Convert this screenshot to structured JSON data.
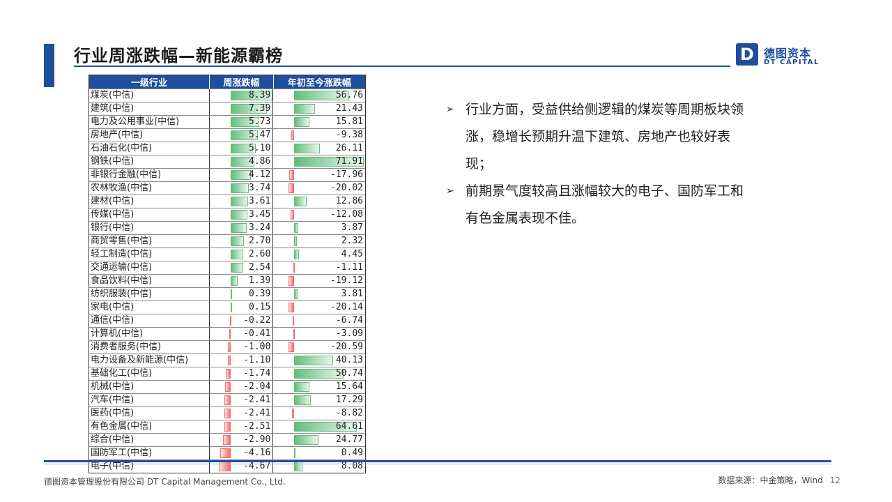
{
  "slide": {
    "title": "行业周涨跌幅—新能源霸榜",
    "logo": {
      "mark": "D",
      "cn": "德图资本",
      "en": "DT CAPITAL"
    }
  },
  "table": {
    "headers": [
      "一级行业",
      "周涨跌幅",
      "年初至今涨跌幅"
    ],
    "rows": [
      {
        "name": "煤炭(中信)",
        "week": "8.39",
        "ytd": "56.76"
      },
      {
        "name": "建筑(中信)",
        "week": "7.39",
        "ytd": "21.43"
      },
      {
        "name": "电力及公用事业(中信)",
        "week": "5.73",
        "ytd": "15.81"
      },
      {
        "name": "房地产(中信)",
        "week": "5.47",
        "ytd": "-9.38"
      },
      {
        "name": "石油石化(中信)",
        "week": "5.10",
        "ytd": "26.11"
      },
      {
        "name": "钢铁(中信)",
        "week": "4.86",
        "ytd": "71.91"
      },
      {
        "name": "非银行金融(中信)",
        "week": "4.12",
        "ytd": "-17.96"
      },
      {
        "name": "农林牧渔(中信)",
        "week": "3.74",
        "ytd": "-20.02"
      },
      {
        "name": "建材(中信)",
        "week": "3.61",
        "ytd": "12.86"
      },
      {
        "name": "传媒(中信)",
        "week": "3.45",
        "ytd": "-12.08"
      },
      {
        "name": "银行(中信)",
        "week": "3.24",
        "ytd": "3.87"
      },
      {
        "name": "商贸零售(中信)",
        "week": "2.70",
        "ytd": "2.32"
      },
      {
        "name": "轻工制造(中信)",
        "week": "2.60",
        "ytd": "4.45"
      },
      {
        "name": "交通运输(中信)",
        "week": "2.54",
        "ytd": "-1.11"
      },
      {
        "name": "食品饮料(中信)",
        "week": "1.39",
        "ytd": "-19.12"
      },
      {
        "name": "纺织服装(中信)",
        "week": "0.39",
        "ytd": "3.81"
      },
      {
        "name": "家电(中信)",
        "week": "0.15",
        "ytd": "-20.14"
      },
      {
        "name": "通信(中信)",
        "week": "-0.22",
        "ytd": "-6.74"
      },
      {
        "name": "计算机(中信)",
        "week": "-0.41",
        "ytd": "-3.09"
      },
      {
        "name": "消费者服务(中信)",
        "week": "-1.00",
        "ytd": "-20.59"
      },
      {
        "name": "电力设备及新能源(中信)",
        "week": "-1.10",
        "ytd": "40.13"
      },
      {
        "name": "基础化工(中信)",
        "week": "-1.74",
        "ytd": "50.74"
      },
      {
        "name": "机械(中信)",
        "week": "-2.04",
        "ytd": "15.64"
      },
      {
        "name": "汽车(中信)",
        "week": "-2.41",
        "ytd": "17.29"
      },
      {
        "name": "医药(中信)",
        "week": "-2.41",
        "ytd": "-8.82"
      },
      {
        "name": "有色金属(中信)",
        "week": "-2.51",
        "ytd": "64.61"
      },
      {
        "name": "综合(中信)",
        "week": "-2.90",
        "ytd": "24.77"
      },
      {
        "name": "国防军工(中信)",
        "week": "-4.16",
        "ytd": "0.49"
      },
      {
        "name": "电子(中信)",
        "week": "-4.67",
        "ytd": "8.08"
      }
    ]
  },
  "bullets": [
    "行业方面，受益供给侧逻辑的煤炭等周期板块领涨，稳增长预期升温下建筑、房地产也较好表现；",
    "前期景气度较高且涨幅较大的电子、国防军工和有色金属表现不佳。"
  ],
  "bullet_marker": "➢",
  "footer": {
    "company": "德图资本管理股份有限公司  DT Capital Management  Co., Ltd.",
    "source": "数据来源：中金策略，Wind",
    "page": "12"
  },
  "colors": {
    "brand": "#1f4e9c",
    "positive": "#63be7b",
    "negative": "#f8696b"
  }
}
